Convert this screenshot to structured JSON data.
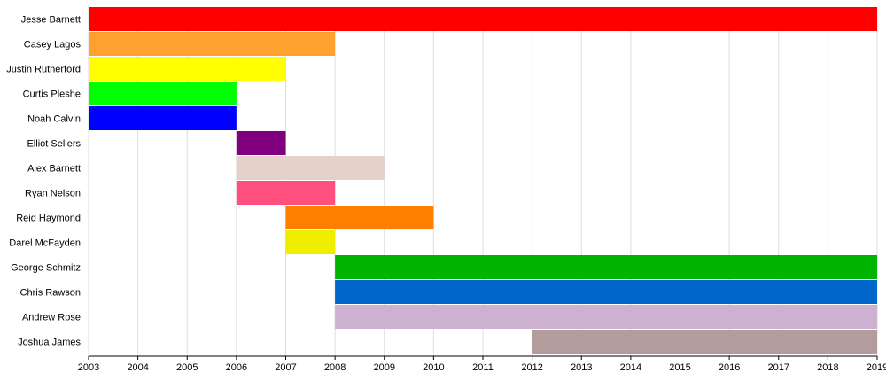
{
  "chart_data": {
    "type": "bar",
    "orientation": "horizontal-timeline",
    "x_range": [
      2003,
      2019
    ],
    "x_ticks": [
      "2003",
      "2004",
      "2005",
      "2006",
      "2007",
      "2008",
      "2009",
      "2010",
      "2011",
      "2012",
      "2013",
      "2014",
      "2015",
      "2016",
      "2017",
      "2018",
      "2019"
    ],
    "grid": true,
    "members": [
      {
        "name": "Jesse Barnett",
        "start": 2003,
        "end": 2019,
        "color": "#ff0000"
      },
      {
        "name": "Casey Lagos",
        "start": 2003,
        "end": 2008,
        "color": "#ffa12f"
      },
      {
        "name": "Justin Rutherford",
        "start": 2003,
        "end": 2007,
        "color": "#ffff00"
      },
      {
        "name": "Curtis Pleshe",
        "start": 2003,
        "end": 2006,
        "color": "#00ff00"
      },
      {
        "name": "Noah Calvin",
        "start": 2003,
        "end": 2006,
        "color": "#0000ff"
      },
      {
        "name": "Elliot Sellers",
        "start": 2006,
        "end": 2007,
        "color": "#800080"
      },
      {
        "name": "Alex Barnett",
        "start": 2006,
        "end": 2009,
        "color": "#e4d2ca"
      },
      {
        "name": "Ryan Nelson",
        "start": 2006,
        "end": 2008,
        "color": "#ff4f7f"
      },
      {
        "name": "Reid Haymond",
        "start": 2007,
        "end": 2010,
        "color": "#ff8000"
      },
      {
        "name": "Darel McFayden",
        "start": 2007,
        "end": 2008,
        "color": "#eeee00"
      },
      {
        "name": "George Schmitz",
        "start": 2008,
        "end": 2019,
        "color": "#00b400"
      },
      {
        "name": "Chris Rawson",
        "start": 2008,
        "end": 2019,
        "color": "#0066cc"
      },
      {
        "name": "Andrew Rose",
        "start": 2008,
        "end": 2019,
        "color": "#ccb2d0"
      },
      {
        "name": "Joshua James",
        "start": 2012,
        "end": 2019,
        "color": "#b29c9c"
      }
    ]
  }
}
